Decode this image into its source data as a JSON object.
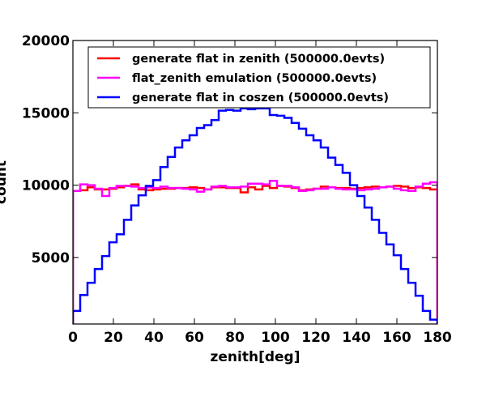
{
  "chart_data": {
    "type": "line",
    "step": true,
    "xlabel": "zenith[deg]",
    "ylabel": "count",
    "xlim": [
      0,
      180
    ],
    "ylim": [
      400,
      20000
    ],
    "xticks": [
      0,
      20,
      40,
      60,
      80,
      100,
      120,
      140,
      160,
      180
    ],
    "yticks": [
      5000,
      10000,
      15000,
      20000
    ],
    "legend_position": "top-right",
    "bin_edges": [
      0,
      3.6,
      7.2,
      10.8,
      14.4,
      18,
      21.6,
      25.2,
      28.8,
      32.4,
      36,
      39.6,
      43.2,
      46.8,
      50.4,
      54,
      57.6,
      61.2,
      64.8,
      68.4,
      72,
      75.6,
      79.2,
      82.8,
      86.4,
      90,
      93.6,
      97.2,
      100.8,
      104.4,
      108,
      111.6,
      115.2,
      118.8,
      122.4,
      126,
      129.6,
      133.2,
      136.8,
      140.4,
      144,
      147.6,
      151.2,
      154.8,
      158.4,
      162,
      165.6,
      169.2,
      172.8,
      176.4,
      180
    ],
    "series": [
      {
        "name": "generate flat in zenith (500000.0evts)",
        "color": "#ff0000",
        "values": [
          9600,
          9650,
          9850,
          9700,
          9700,
          9750,
          9850,
          9950,
          10050,
          9700,
          9650,
          9700,
          9750,
          9750,
          9800,
          9800,
          9850,
          9800,
          9700,
          9850,
          9850,
          9800,
          9800,
          9500,
          9850,
          9700,
          9950,
          9800,
          9950,
          9900,
          9800,
          9650,
          9700,
          9750,
          9900,
          9850,
          9800,
          9800,
          9750,
          9800,
          9850,
          9900,
          9850,
          9900,
          9950,
          9900,
          9800,
          9850,
          9800,
          9700
        ]
      },
      {
        "name": "flat_zenith emulation (500000.0evts)",
        "color": "#ff00ff",
        "values": [
          9600,
          10050,
          10000,
          9750,
          9250,
          9800,
          9950,
          9950,
          9900,
          9800,
          9850,
          9800,
          9900,
          9800,
          9800,
          9750,
          9700,
          9550,
          9700,
          9900,
          9950,
          9850,
          9850,
          9900,
          10100,
          10100,
          10050,
          10300,
          9950,
          9950,
          9850,
          9600,
          9650,
          9750,
          9750,
          9850,
          9750,
          9700,
          9700,
          9650,
          9700,
          9750,
          9850,
          9900,
          9750,
          9650,
          9600,
          9900,
          10100,
          10200
        ]
      },
      {
        "name": "generate flat in coszen (500000.0evts)",
        "color": "#0000ff",
        "values": [
          1300,
          2400,
          3250,
          4200,
          5100,
          6050,
          6600,
          7600,
          8600,
          9300,
          9950,
          10350,
          11250,
          11950,
          12600,
          13100,
          13450,
          13950,
          14150,
          14500,
          15150,
          15200,
          15150,
          15300,
          15250,
          15300,
          15300,
          14850,
          14800,
          14650,
          14300,
          13900,
          13450,
          13100,
          12600,
          11900,
          11400,
          10850,
          10000,
          9250,
          8450,
          7600,
          6700,
          5900,
          5150,
          4200,
          3250,
          2350,
          1300,
          700
        ]
      }
    ]
  }
}
